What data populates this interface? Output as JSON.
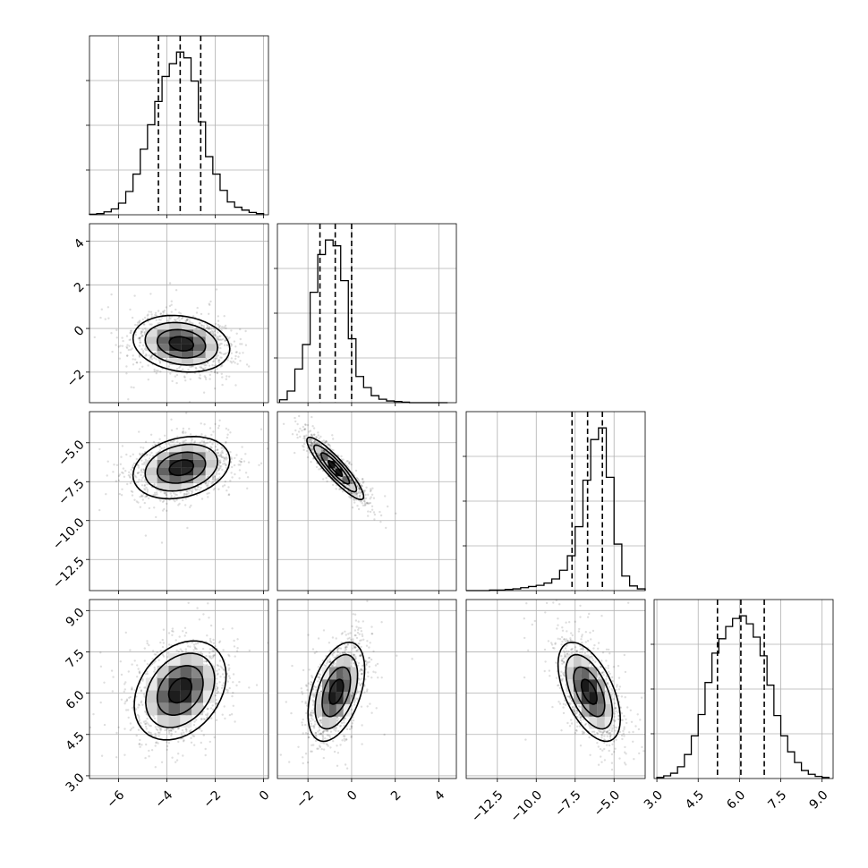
{
  "chart_data": {
    "type": "corner",
    "n_params": 4,
    "parameters": [
      {
        "range": [
          -7.2,
          0.2
        ],
        "ticks": [
          -6,
          -4,
          -2,
          0
        ],
        "tick_labels": [
          "−6",
          "−4",
          "−2",
          "0"
        ],
        "quantiles": [
          -4.35,
          -3.45,
          -2.6
        ],
        "hist": {
          "edges": [
            -7.2,
            -6.9,
            -6.6,
            -6.3,
            -6.0,
            -5.7,
            -5.4,
            -5.1,
            -4.8,
            -4.5,
            -4.2,
            -3.9,
            -3.6,
            -3.3,
            -3.0,
            -2.7,
            -2.4,
            -2.1,
            -1.8,
            -1.5,
            -1.2,
            -0.9,
            -0.6,
            -0.3,
            0.0
          ],
          "counts": [
            1,
            2,
            5,
            10,
            20,
            40,
            70,
            113,
            155,
            195,
            238,
            260,
            280,
            270,
            230,
            160,
            100,
            70,
            42,
            22,
            13,
            8,
            4,
            2
          ]
        }
      },
      {
        "range": [
          -3.4,
          4.8
        ],
        "ticks": [
          -2,
          0,
          2,
          4
        ],
        "tick_labels": [
          "−2",
          "0",
          "2",
          "4"
        ],
        "quantiles": [
          -1.45,
          -0.75,
          0.0
        ],
        "hist": {
          "edges": [
            -3.3,
            -2.95,
            -2.6,
            -2.25,
            -1.9,
            -1.55,
            -1.2,
            -0.85,
            -0.5,
            -0.15,
            0.2,
            0.55,
            0.9,
            1.25,
            1.6,
            1.95,
            2.3,
            2.65,
            3.0,
            3.35,
            3.7,
            4.05,
            4.4
          ],
          "counts": [
            5,
            20,
            58,
            100,
            190,
            255,
            280,
            270,
            210,
            110,
            45,
            26,
            12,
            6,
            3,
            2,
            1,
            0,
            0,
            0,
            0,
            0
          ]
        }
      },
      {
        "range": [
          -14.5,
          -3.0
        ],
        "ticks": [
          -12.5,
          -10.0,
          -7.5,
          -5.0
        ],
        "tick_labels": [
          "−12.5",
          "−10.0",
          "−7.5",
          "−5.0"
        ],
        "quantiles": [
          -7.7,
          -6.7,
          -5.75
        ],
        "hist": {
          "edges": [
            -14.5,
            -14.0,
            -13.5,
            -13.0,
            -12.5,
            -12.0,
            -11.5,
            -11.0,
            -10.5,
            -10.0,
            -9.5,
            -9.0,
            -8.5,
            -8.0,
            -7.5,
            -7.0,
            -6.5,
            -6.0,
            -5.5,
            -5.0,
            -4.5,
            -4.0,
            -3.5,
            -3.0
          ],
          "counts": [
            0,
            0,
            0,
            1,
            1,
            2,
            3,
            5,
            7,
            9,
            13,
            20,
            35,
            60,
            110,
            190,
            260,
            280,
            195,
            80,
            25,
            8,
            3
          ]
        }
      },
      {
        "range": [
          2.9,
          9.4
        ],
        "ticks": [
          3.0,
          4.5,
          6.0,
          7.5,
          9.0
        ],
        "tick_labels": [
          "3.0",
          "4.5",
          "6.0",
          "7.5",
          "9.0"
        ],
        "quantiles": [
          5.2,
          6.05,
          6.9
        ],
        "hist": {
          "edges": [
            3.0,
            3.25,
            3.5,
            3.75,
            4.0,
            4.25,
            4.5,
            4.75,
            5.0,
            5.25,
            5.5,
            5.75,
            6.0,
            6.25,
            6.5,
            6.75,
            7.0,
            7.25,
            7.5,
            7.75,
            8.0,
            8.25,
            8.5,
            8.75,
            9.0,
            9.25
          ],
          "counts": [
            2,
            5,
            10,
            22,
            45,
            80,
            120,
            180,
            235,
            262,
            285,
            300,
            305,
            290,
            265,
            230,
            175,
            118,
            80,
            50,
            30,
            15,
            8,
            4,
            2
          ]
        }
      }
    ],
    "pairs": [
      {
        "i": 1,
        "j": 0,
        "mean": [
          -3.4,
          -0.7
        ],
        "sd": [
          1.0,
          0.65
        ],
        "rho": -0.18
      },
      {
        "i": 2,
        "j": 0,
        "mean": [
          -3.4,
          -6.6
        ],
        "sd": [
          1.0,
          1.0
        ],
        "rho": 0.25
      },
      {
        "i": 2,
        "j": 1,
        "mean": [
          -0.75,
          -6.65
        ],
        "sd": [
          0.65,
          1.0
        ],
        "rho": -0.9
      },
      {
        "i": 3,
        "j": 0,
        "mean": [
          -3.45,
          6.1
        ],
        "sd": [
          0.95,
          0.9
        ],
        "rho": 0.3
      },
      {
        "i": 3,
        "j": 1,
        "mean": [
          -0.7,
          6.05
        ],
        "sd": [
          0.65,
          0.9
        ],
        "rho": 0.45
      },
      {
        "i": 3,
        "j": 2,
        "mean": [
          -6.6,
          6.05
        ],
        "sd": [
          1.0,
          0.9
        ],
        "rho": -0.55
      }
    ],
    "contour_levels_sigma": [
      0.5,
      1.0,
      1.5,
      2.0
    ],
    "grid": true,
    "title": "",
    "axis_labels": []
  }
}
